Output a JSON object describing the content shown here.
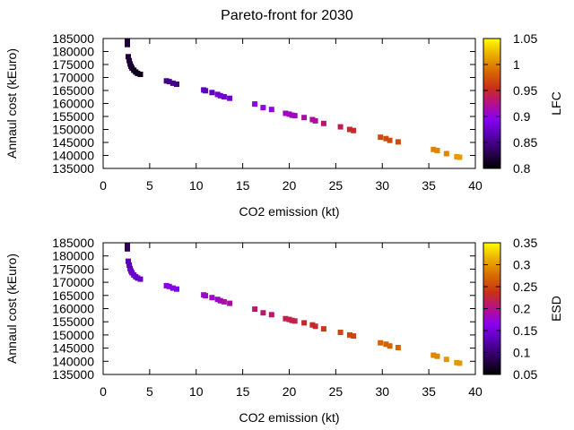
{
  "figure": {
    "title": "Pareto-front for 2030"
  },
  "front_points": {
    "x": [
      2.6,
      2.6,
      2.7,
      2.8,
      2.9,
      3.0,
      3.1,
      3.3,
      3.5,
      3.7,
      4.0,
      6.8,
      7.1,
      7.5,
      7.9,
      10.8,
      11.0,
      11.7,
      12.3,
      12.6,
      13.0,
      13.6,
      16.3,
      17.2,
      18.1,
      19.6,
      20.0,
      20.3,
      20.6,
      21.6,
      22.5,
      22.8,
      23.7,
      25.5,
      26.5,
      26.9,
      29.8,
      30.4,
      30.8,
      31.7,
      35.5,
      35.9,
      36.9,
      38.0,
      38.3
    ],
    "y": [
      184000,
      182700,
      178000,
      176500,
      175200,
      174300,
      173600,
      172800,
      172100,
      171600,
      171200,
      168700,
      168400,
      167800,
      167400,
      165200,
      164900,
      164200,
      163500,
      163000,
      162600,
      162000,
      159800,
      158400,
      157700,
      156200,
      155900,
      155500,
      155300,
      154600,
      153800,
      153300,
      152300,
      151000,
      150000,
      149600,
      147000,
      146500,
      145800,
      145200,
      142300,
      141900,
      140700,
      139500,
      139300
    ],
    "lfc": [
      0.82,
      0.82,
      0.82,
      0.82,
      0.82,
      0.82,
      0.82,
      0.81,
      0.81,
      0.81,
      0.81,
      0.85,
      0.85,
      0.85,
      0.85,
      0.87,
      0.87,
      0.87,
      0.88,
      0.88,
      0.88,
      0.88,
      0.9,
      0.9,
      0.9,
      0.91,
      0.91,
      0.91,
      0.91,
      0.92,
      0.92,
      0.92,
      0.93,
      0.94,
      0.95,
      0.95,
      0.97,
      0.97,
      0.97,
      0.97,
      1.0,
      1.0,
      1.0,
      1.01,
      1.01
    ],
    "esd": [
      0.09,
      0.09,
      0.13,
      0.13,
      0.13,
      0.14,
      0.14,
      0.14,
      0.14,
      0.14,
      0.14,
      0.16,
      0.16,
      0.16,
      0.16,
      0.18,
      0.18,
      0.18,
      0.18,
      0.18,
      0.19,
      0.19,
      0.21,
      0.21,
      0.21,
      0.22,
      0.22,
      0.22,
      0.22,
      0.23,
      0.23,
      0.23,
      0.24,
      0.25,
      0.25,
      0.25,
      0.27,
      0.27,
      0.27,
      0.27,
      0.29,
      0.29,
      0.3,
      0.3,
      0.3
    ]
  },
  "chart_data": [
    {
      "type": "scatter",
      "xlabel": "CO2 emission (kt)",
      "ylabel": "Annaul cost (kEuro)",
      "xlim": [
        0,
        40
      ],
      "ylim": [
        135000,
        185000
      ],
      "x_ticks": [
        "0",
        "5",
        "10",
        "15",
        "20",
        "25",
        "30",
        "35",
        "40"
      ],
      "x_tick_values": [
        0,
        5,
        10,
        15,
        20,
        25,
        30,
        35,
        40
      ],
      "y_ticks": [
        "135000",
        "140000",
        "145000",
        "150000",
        "155000",
        "160000",
        "165000",
        "170000",
        "175000",
        "180000",
        "185000"
      ],
      "y_tick_values": [
        135000,
        140000,
        145000,
        150000,
        155000,
        160000,
        165000,
        170000,
        175000,
        180000,
        185000
      ],
      "grid": false,
      "color_by": "lfc",
      "colorbar": {
        "label": "LFC",
        "range": [
          0.8,
          1.05
        ],
        "ticks": [
          "0.8",
          "0.85",
          "0.9",
          "0.95",
          "1",
          "1.05"
        ],
        "tick_values": [
          0.8,
          0.85,
          0.9,
          0.95,
          1.0,
          1.05
        ]
      }
    },
    {
      "type": "scatter",
      "xlabel": "CO2 emission (kt)",
      "ylabel": "Annaul cost (kEuro)",
      "xlim": [
        0,
        40
      ],
      "ylim": [
        135000,
        185000
      ],
      "x_ticks": [
        "0",
        "5",
        "10",
        "15",
        "20",
        "25",
        "30",
        "35",
        "40"
      ],
      "x_tick_values": [
        0,
        5,
        10,
        15,
        20,
        25,
        30,
        35,
        40
      ],
      "y_ticks": [
        "135000",
        "140000",
        "145000",
        "150000",
        "155000",
        "160000",
        "165000",
        "170000",
        "175000",
        "180000",
        "185000"
      ],
      "y_tick_values": [
        135000,
        140000,
        145000,
        150000,
        155000,
        160000,
        165000,
        170000,
        175000,
        180000,
        185000
      ],
      "grid": false,
      "color_by": "esd",
      "colorbar": {
        "label": "ESD",
        "range": [
          0.05,
          0.35
        ],
        "ticks": [
          "0.05",
          "0.1",
          "0.15",
          "0.2",
          "0.25",
          "0.3",
          "0.35"
        ],
        "tick_values": [
          0.05,
          0.1,
          0.15,
          0.2,
          0.25,
          0.3,
          0.35
        ]
      }
    }
  ]
}
